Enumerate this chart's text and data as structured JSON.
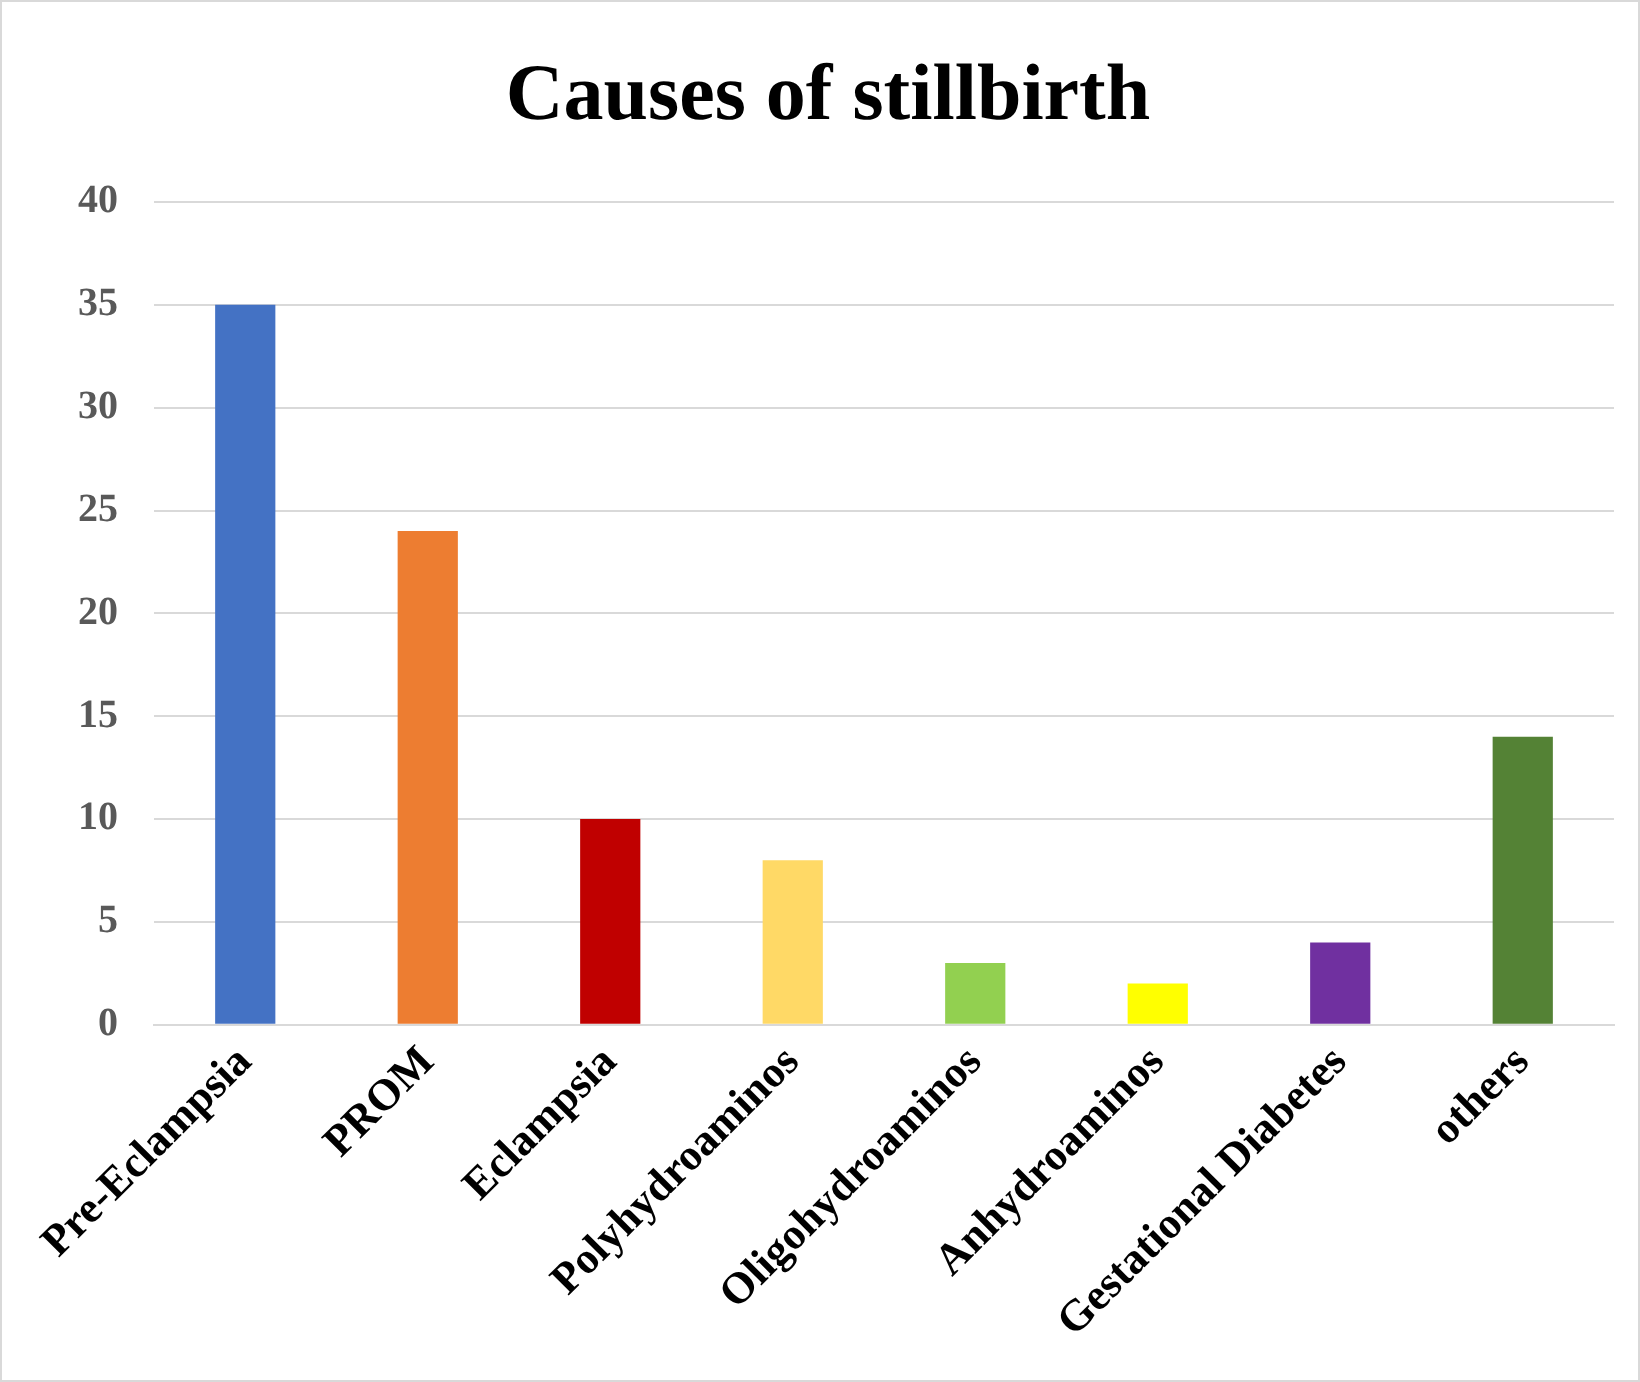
{
  "chart_data": {
    "type": "bar",
    "title": "Causes of stillbirth",
    "categories": [
      "Pre-Eclampsia",
      "PROM",
      "Eclampsia",
      "Polyhydroaminos",
      "Oligohydroaminos",
      "Anhydroaminos",
      "Gestational Diabetes",
      "others"
    ],
    "values": [
      35,
      24,
      10,
      8,
      3,
      2,
      4,
      14
    ],
    "colors": [
      "#4472c4",
      "#ed7d31",
      "#c00000",
      "#ffd966",
      "#92d050",
      "#ffff00",
      "#7030a0",
      "#548235"
    ],
    "ylim": [
      0,
      40
    ],
    "yticks": [
      0,
      5,
      10,
      15,
      20,
      25,
      30,
      35,
      40
    ],
    "grid": "y"
  }
}
